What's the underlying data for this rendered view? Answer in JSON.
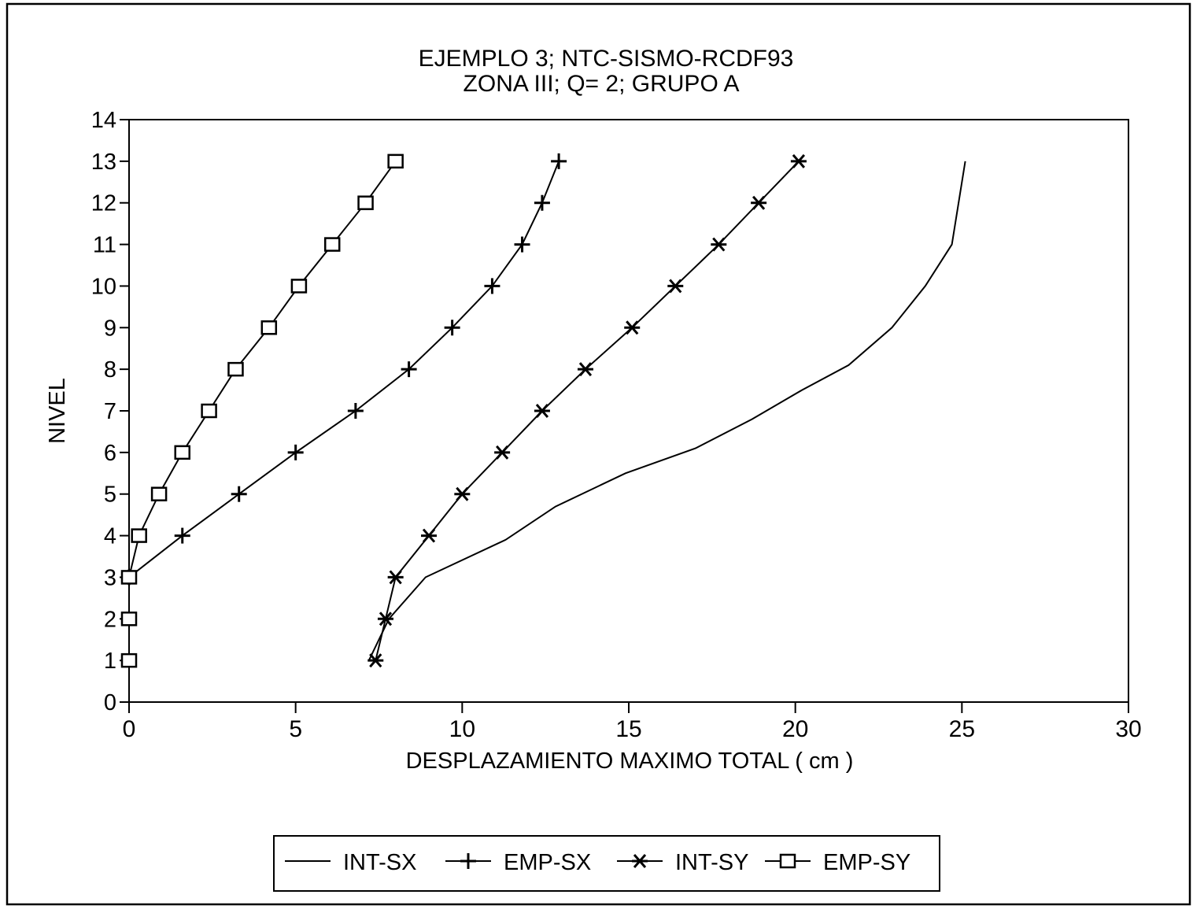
{
  "chart_data": {
    "type": "line",
    "title": "EJEMPLO  3; NTC-SISMO-RCDF93",
    "subtitle": "ZONA  III; Q= 2; GRUPO A",
    "xlabel": "DESPLAZAMIENTO  MAXIMO  TOTAL  ( cm )",
    "ylabel": "NIVEL",
    "xlim": [
      0,
      30
    ],
    "ylim": [
      0,
      14
    ],
    "xticks": [
      "0",
      "5",
      "10",
      "15",
      "20",
      "25",
      "30"
    ],
    "yticks": [
      "0",
      "1",
      "2",
      "3",
      "4",
      "5",
      "6",
      "7",
      "8",
      "9",
      "10",
      "11",
      "12",
      "13",
      "14"
    ],
    "grid": false,
    "legend_position": "bottom",
    "series": [
      {
        "name": "INT-SX",
        "marker": "none",
        "x": [
          7.2,
          7.8,
          8.9,
          11.3,
          12.8,
          14.9,
          17.0,
          18.7,
          20.2,
          21.6,
          22.9,
          23.9,
          24.7,
          25.1
        ],
        "y": [
          1,
          2,
          3,
          3.9,
          4.7,
          5.5,
          6.1,
          6.8,
          7.5,
          8.1,
          9.0,
          10.0,
          11.0,
          13.0
        ]
      },
      {
        "name": "EMP-SX",
        "marker": "plus",
        "x": [
          0.0,
          1.6,
          3.3,
          5.0,
          6.8,
          8.4,
          9.7,
          10.9,
          11.8,
          12.4,
          12.9
        ],
        "y": [
          3,
          4,
          5,
          6,
          7,
          8,
          9,
          10,
          11,
          12,
          13
        ]
      },
      {
        "name": "INT-SY",
        "marker": "asterisk",
        "x": [
          7.4,
          7.7,
          8.0,
          9.0,
          10.0,
          11.2,
          12.4,
          13.7,
          15.1,
          16.4,
          17.7,
          18.9,
          20.1
        ],
        "y": [
          1,
          2,
          3,
          4,
          5,
          6,
          7,
          8,
          9,
          10,
          11,
          12,
          13
        ]
      },
      {
        "name": "EMP-SY",
        "marker": "square",
        "x": [
          0.0,
          0.0,
          0.0,
          0.3,
          0.9,
          1.6,
          2.4,
          3.2,
          4.2,
          5.1,
          6.1,
          7.1,
          8.0
        ],
        "y": [
          1,
          2,
          3,
          4,
          5,
          6,
          7,
          8,
          9,
          10,
          11,
          12,
          13
        ]
      }
    ]
  }
}
